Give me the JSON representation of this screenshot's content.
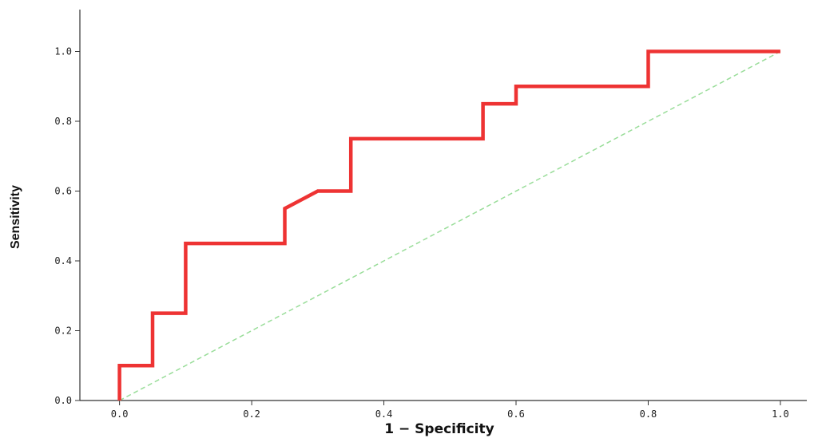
{
  "chart_data": {
    "type": "line",
    "title": "",
    "xlabel": "1 − Specificity",
    "ylabel": "Sensitivity",
    "xlim": [
      -0.06,
      1.04
    ],
    "ylim": [
      0.0,
      1.12
    ],
    "xticks": [
      0.0,
      0.2,
      0.4,
      0.6,
      0.8,
      1.0
    ],
    "yticks": [
      0.0,
      0.2,
      0.4,
      0.6,
      0.8,
      1.0
    ],
    "xtick_labels": [
      "0.0",
      "0.2",
      "0.4",
      "0.6",
      "0.8",
      "1.0"
    ],
    "ytick_labels": [
      "0.0",
      "0.2",
      "0.4",
      "0.6",
      "0.8",
      "1.0"
    ],
    "grid": false,
    "legend": "none",
    "series": [
      {
        "color": "#ee3333",
        "style": "solid",
        "x": [
          0.0,
          0.0,
          0.05,
          0.05,
          0.1,
          0.1,
          0.25,
          0.25,
          0.3,
          0.35,
          0.35,
          0.55,
          0.55,
          0.6,
          0.6,
          0.8,
          0.8,
          1.0
        ],
        "y": [
          0.0,
          0.1,
          0.1,
          0.25,
          0.25,
          0.45,
          0.45,
          0.55,
          0.6,
          0.6,
          0.75,
          0.75,
          0.85,
          0.85,
          0.9,
          0.9,
          1.0,
          1.0
        ]
      },
      {
        "color": "#99dd99",
        "style": "dashed",
        "x": [
          0.0,
          1.0
        ],
        "y": [
          0.0,
          1.0
        ]
      }
    ]
  }
}
